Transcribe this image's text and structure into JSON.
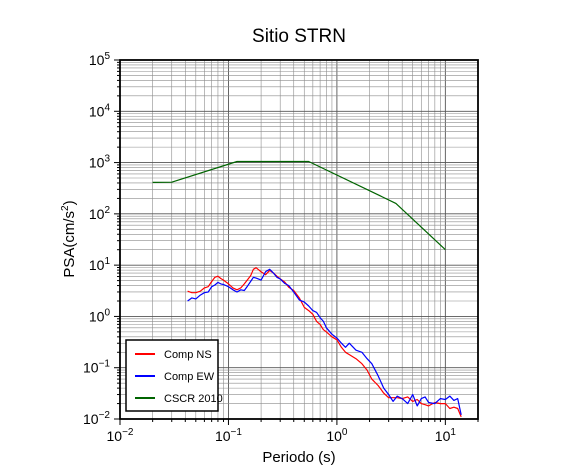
{
  "chart_data": {
    "type": "line",
    "title": "Sitio STRN",
    "xlabel": "Periodo (s)",
    "ylabel": "PSA(cm/s²)",
    "ylabel_base": "PSA(cm/s",
    "ylabel_sup": "2",
    "ylabel_close": ")",
    "xscale": "log",
    "yscale": "log",
    "xlim": [
      0.01,
      20
    ],
    "ylim": [
      0.01,
      100000
    ],
    "grid": true,
    "legend_position": "bottom-left",
    "x_ticks": [
      {
        "value": 0.01,
        "base": "10",
        "exp": "−2"
      },
      {
        "value": 0.1,
        "base": "10",
        "exp": "−1"
      },
      {
        "value": 1,
        "base": "10",
        "exp": "0"
      },
      {
        "value": 10,
        "base": "10",
        "exp": "1"
      }
    ],
    "y_ticks": [
      {
        "value": 0.01,
        "base": "10",
        "exp": "−2"
      },
      {
        "value": 0.1,
        "base": "10",
        "exp": "−1"
      },
      {
        "value": 1,
        "base": "10",
        "exp": "0"
      },
      {
        "value": 10,
        "base": "10",
        "exp": "1"
      },
      {
        "value": 100,
        "base": "10",
        "exp": "2"
      },
      {
        "value": 1000,
        "base": "10",
        "exp": "3"
      },
      {
        "value": 10000,
        "base": "10",
        "exp": "4"
      },
      {
        "value": 100000,
        "base": "10",
        "exp": "5"
      }
    ],
    "series": [
      {
        "name": "Comp NS",
        "color": "#ff0000",
        "x": [
          0.042,
          0.046,
          0.05,
          0.055,
          0.06,
          0.065,
          0.07,
          0.075,
          0.08,
          0.085,
          0.09,
          0.1,
          0.11,
          0.12,
          0.13,
          0.14,
          0.15,
          0.16,
          0.17,
          0.18,
          0.2,
          0.22,
          0.24,
          0.26,
          0.28,
          0.3,
          0.33,
          0.36,
          0.4,
          0.45,
          0.5,
          0.55,
          0.6,
          0.65,
          0.7,
          0.75,
          0.8,
          0.9,
          1.0,
          1.1,
          1.2,
          1.3,
          1.5,
          1.7,
          1.9,
          2.1,
          2.4,
          2.7,
          3.0,
          3.3,
          3.6,
          4.0,
          4.5,
          5.0,
          5.5,
          6.0,
          6.5,
          7.0,
          8.0,
          9.0,
          10.0,
          11.0,
          12.0,
          13.0,
          14.0
        ],
        "y": [
          3.1,
          2.9,
          2.9,
          3.1,
          3.6,
          3.8,
          4.8,
          5.8,
          6.1,
          5.5,
          5.1,
          4.3,
          3.6,
          3.3,
          3.6,
          4.3,
          5.2,
          6.2,
          8.3,
          8.9,
          7.4,
          6.5,
          7.9,
          7.0,
          6.1,
          5.4,
          4.7,
          3.7,
          3.2,
          2.3,
          1.5,
          1.3,
          1.1,
          0.8,
          0.7,
          0.55,
          0.5,
          0.4,
          0.35,
          0.25,
          0.2,
          0.18,
          0.15,
          0.12,
          0.09,
          0.06,
          0.045,
          0.032,
          0.026,
          0.026,
          0.026,
          0.025,
          0.027,
          0.022,
          0.024,
          0.02,
          0.019,
          0.018,
          0.021,
          0.02,
          0.02,
          0.016,
          0.017,
          0.016,
          0.011
        ]
      },
      {
        "name": "Comp EW",
        "color": "#0000ff",
        "x": [
          0.042,
          0.046,
          0.05,
          0.055,
          0.06,
          0.065,
          0.07,
          0.075,
          0.08,
          0.085,
          0.09,
          0.1,
          0.11,
          0.12,
          0.13,
          0.14,
          0.15,
          0.16,
          0.17,
          0.18,
          0.2,
          0.22,
          0.24,
          0.26,
          0.28,
          0.3,
          0.33,
          0.36,
          0.4,
          0.45,
          0.5,
          0.55,
          0.6,
          0.65,
          0.7,
          0.75,
          0.8,
          0.9,
          1.0,
          1.1,
          1.2,
          1.3,
          1.5,
          1.7,
          1.9,
          2.1,
          2.4,
          2.7,
          3.0,
          3.3,
          3.6,
          4.0,
          4.5,
          5.0,
          5.5,
          6.0,
          6.5,
          7.0,
          8.0,
          9.0,
          10.0,
          11.0,
          12.0,
          13.0,
          14.0
        ],
        "y": [
          2.0,
          2.3,
          2.2,
          2.6,
          2.9,
          3.0,
          3.8,
          4.1,
          4.6,
          4.3,
          4.2,
          3.8,
          3.3,
          3.0,
          3.3,
          3.2,
          3.9,
          4.8,
          5.8,
          5.6,
          5.1,
          7.5,
          8.3,
          7.0,
          5.8,
          5.4,
          4.4,
          4.0,
          3.0,
          2.1,
          1.9,
          1.6,
          1.3,
          1.2,
          0.95,
          0.8,
          0.6,
          0.45,
          0.38,
          0.3,
          0.25,
          0.3,
          0.22,
          0.2,
          0.15,
          0.12,
          0.07,
          0.04,
          0.03,
          0.022,
          0.028,
          0.025,
          0.02,
          0.03,
          0.018,
          0.025,
          0.027,
          0.021,
          0.02,
          0.025,
          0.024,
          0.028,
          0.023,
          0.025,
          0.012
        ]
      },
      {
        "name": "CSCR 2010",
        "color": "#006400",
        "x": [
          0.02,
          0.03,
          0.12,
          0.55,
          3.5,
          10.0
        ],
        "y": [
          410,
          415,
          1050,
          1050,
          160,
          20
        ]
      }
    ]
  }
}
